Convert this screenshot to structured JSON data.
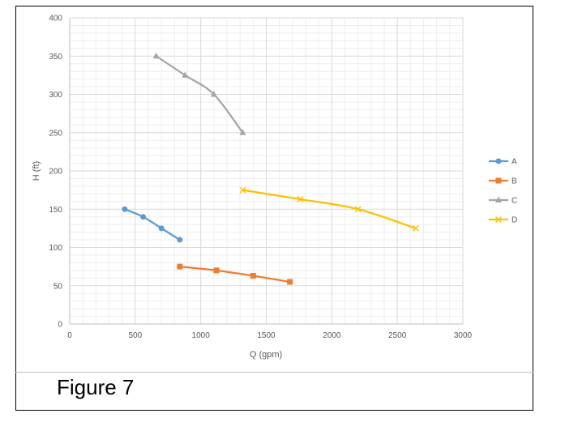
{
  "caption": "Figure 7",
  "chart_data": {
    "type": "line",
    "xlabel": "Q (gpm)",
    "ylabel": "H (ft)",
    "xlim": [
      0,
      3000
    ],
    "ylim": [
      0,
      400
    ],
    "x_ticks": [
      "0",
      "500",
      "1000",
      "1500",
      "2000",
      "2500",
      "3000"
    ],
    "y_ticks": [
      "0",
      "50",
      "100",
      "150",
      "200",
      "250",
      "300",
      "350",
      "400"
    ],
    "grid": true,
    "minor_grid": true,
    "legend_position": "right",
    "series": [
      {
        "name": "A",
        "color": "#5b9bd5",
        "marker": "circle",
        "x": [
          420,
          560,
          700,
          840
        ],
        "y": [
          150,
          140,
          125,
          110
        ]
      },
      {
        "name": "B",
        "color": "#ed7d31",
        "marker": "square",
        "x": [
          840,
          1120,
          1400,
          1680
        ],
        "y": [
          75,
          70,
          63,
          55
        ]
      },
      {
        "name": "C",
        "color": "#a5a5a5",
        "marker": "triangle",
        "x": [
          660,
          880,
          1100,
          1320
        ],
        "y": [
          350,
          325,
          300,
          250
        ]
      },
      {
        "name": "D",
        "color": "#ffc000",
        "marker": "x",
        "x": [
          1320,
          1760,
          2200,
          2640
        ],
        "y": [
          175,
          163,
          150,
          125
        ]
      }
    ]
  }
}
